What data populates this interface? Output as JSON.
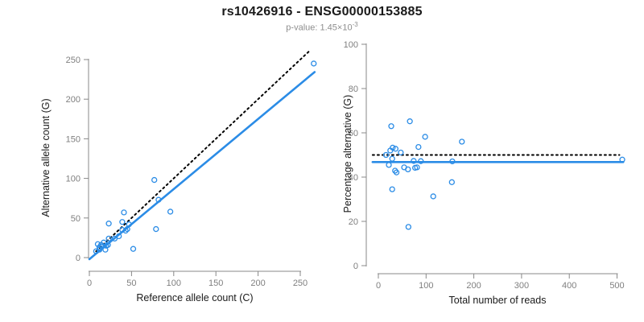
{
  "header": {
    "title": "rs10426916 - ENSG00000153885",
    "pvalue_text": "p-value: 1.45×10",
    "pvalue_exponent": "-3"
  },
  "colors": {
    "points": "#2B8CE6",
    "fit_line": "#2B8CE6",
    "reference_line": "#000000",
    "axis_line": "#888888",
    "tick_label": "#7f7f7f",
    "axis_title": "#1a1a1a",
    "title": "#1a1a1a",
    "subtitle": "#8e8e8e"
  },
  "chart_data": [
    {
      "id": "ref-vs-alt",
      "type": "scatter",
      "xlabel": "Reference allele count (C)",
      "ylabel": "Alternative allele count (G)",
      "xlim": [
        0,
        265
      ],
      "ylim": [
        0,
        250
      ],
      "xticks": [
        0,
        50,
        100,
        150,
        200,
        250
      ],
      "yticks": [
        0,
        50,
        100,
        150,
        200,
        250
      ],
      "grid": false,
      "legend": "none",
      "points": [
        [
          23,
          43
        ],
        [
          10,
          17
        ],
        [
          41,
          57
        ],
        [
          77,
          98
        ],
        [
          39,
          45
        ],
        [
          12,
          13
        ],
        [
          14,
          16
        ],
        [
          17,
          19
        ],
        [
          23,
          24
        ],
        [
          8,
          8
        ],
        [
          15,
          14
        ],
        [
          39,
          35
        ],
        [
          47,
          42
        ],
        [
          82,
          73
        ],
        [
          12,
          10
        ],
        [
          30,
          24
        ],
        [
          35,
          27
        ],
        [
          43,
          34
        ],
        [
          45,
          36
        ],
        [
          20,
          15
        ],
        [
          22,
          16
        ],
        [
          19,
          10
        ],
        [
          96,
          58
        ],
        [
          79,
          36
        ],
        [
          52,
          11
        ],
        [
          266,
          245
        ]
      ],
      "fit_line": {
        "slope": 0.885,
        "intercept": -2,
        "style": "solid",
        "x_range": [
          0,
          267
        ]
      },
      "reference_line": {
        "slope": 1,
        "intercept": 0,
        "style": "dotted",
        "x_range": [
          8,
          262
        ]
      }
    },
    {
      "id": "reads-vs-pct",
      "type": "scatter",
      "xlabel": "Total number of reads",
      "ylabel": "Percentage alternative (G)",
      "xlim": [
        0,
        511
      ],
      "ylim": [
        0,
        100
      ],
      "xticks": [
        0,
        100,
        200,
        300,
        400,
        500
      ],
      "yticks": [
        0,
        20,
        40,
        60,
        80,
        100
      ],
      "grid": false,
      "legend": "none",
      "points": [
        [
          66,
          65.2
        ],
        [
          27,
          63.0
        ],
        [
          98,
          58.2
        ],
        [
          175,
          56.0
        ],
        [
          84,
          53.6
        ],
        [
          25,
          52.0
        ],
        [
          30,
          53.3
        ],
        [
          36,
          52.8
        ],
        [
          47,
          51.1
        ],
        [
          16,
          50.0
        ],
        [
          29,
          48.3
        ],
        [
          74,
          47.3
        ],
        [
          89,
          47.2
        ],
        [
          155,
          47.1
        ],
        [
          22,
          45.5
        ],
        [
          54,
          44.4
        ],
        [
          62,
          43.5
        ],
        [
          77,
          44.2
        ],
        [
          81,
          44.4
        ],
        [
          35,
          42.9
        ],
        [
          38,
          42.1
        ],
        [
          29,
          34.5
        ],
        [
          154,
          37.7
        ],
        [
          115,
          31.3
        ],
        [
          63,
          17.5
        ],
        [
          511,
          47.9
        ]
      ],
      "fit_line": {
        "value": 46.8,
        "orientation": "horizontal",
        "style": "solid",
        "x_range": [
          -12,
          513
        ]
      },
      "reference_line": {
        "value": 50,
        "orientation": "horizontal",
        "style": "dotted",
        "x_range": [
          -12,
          505
        ]
      }
    }
  ]
}
